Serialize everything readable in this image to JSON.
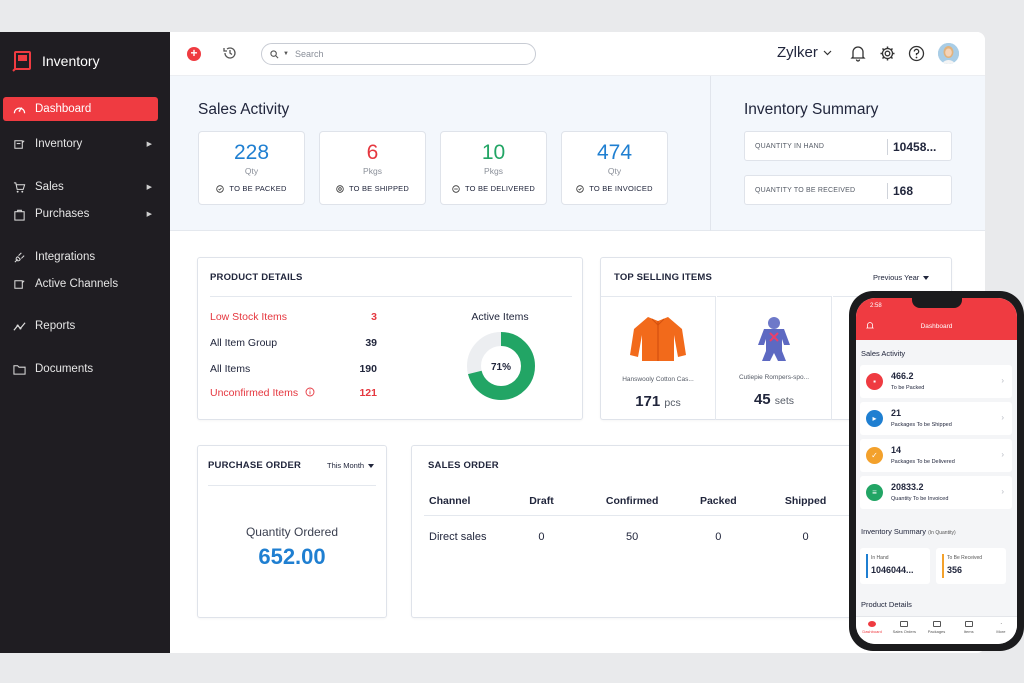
{
  "app": {
    "name": "Inventory"
  },
  "sidebar": {
    "items": [
      {
        "label": "Dashboard",
        "icon": "dashboard-icon",
        "active": true
      },
      {
        "label": "Inventory",
        "icon": "inventory-icon",
        "has_caret": true
      },
      {
        "label": "Sales",
        "icon": "cart-icon",
        "has_caret": true
      },
      {
        "label": "Purchases",
        "icon": "bag-icon",
        "has_caret": true
      },
      {
        "label": "Integrations",
        "icon": "plug-icon"
      },
      {
        "label": "Active Channels",
        "icon": "channels-icon"
      },
      {
        "label": "Reports",
        "icon": "reports-icon"
      },
      {
        "label": "Documents",
        "icon": "folder-icon"
      }
    ]
  },
  "topbar": {
    "search_placeholder": "Search",
    "org_name": "Zylker"
  },
  "sales_activity": {
    "title": "Sales Activity",
    "cards": [
      {
        "value": "228",
        "unit": "Qty",
        "label": "TO BE PACKED",
        "color": "#1f7fd1"
      },
      {
        "value": "6",
        "unit": "Pkgs",
        "label": "TO BE SHIPPED",
        "color": "#e5373f"
      },
      {
        "value": "10",
        "unit": "Pkgs",
        "label": "TO BE DELIVERED",
        "color": "#22a565"
      },
      {
        "value": "474",
        "unit": "Qty",
        "label": "TO BE INVOICED",
        "color": "#1f7fd1"
      }
    ]
  },
  "inventory_summary": {
    "title": "Inventory Summary",
    "rows": [
      {
        "label": "QUANTITY IN HAND",
        "value": "10458..."
      },
      {
        "label": "QUANTITY TO BE RECEIVED",
        "value": "168"
      }
    ]
  },
  "product_details": {
    "title": "PRODUCT DETAILS",
    "rows": [
      {
        "label": "Low Stock Items",
        "value": "3",
        "highlight": true
      },
      {
        "label": "All Item Group",
        "value": "39"
      },
      {
        "label": "All Items",
        "value": "190"
      },
      {
        "label": "Unconfirmed Items",
        "value": "121",
        "highlight": true,
        "info": true
      }
    ],
    "active_items": {
      "label": "Active Items",
      "percent_label": "71%",
      "fraction": 0.71,
      "color": "#22a565"
    }
  },
  "top_selling": {
    "title": "TOP SELLING ITEMS",
    "period": "Previous Year",
    "items": [
      {
        "name": "Hanswooly Cotton Cas...",
        "qty": "171",
        "unit": "pcs"
      },
      {
        "name": "Cutiepie Rompers-spo...",
        "qty": "45",
        "unit": "sets"
      }
    ]
  },
  "purchase_order": {
    "title": "PURCHASE ORDER",
    "period": "This Month",
    "label": "Quantity Ordered",
    "value": "652.00"
  },
  "sales_order": {
    "title": "SALES ORDER",
    "columns": [
      "Channel",
      "Draft",
      "Confirmed",
      "Packed",
      "Shipped"
    ],
    "rows": [
      [
        "Direct sales",
        "0",
        "50",
        "0",
        "0"
      ]
    ]
  },
  "mobile": {
    "time": "2:58",
    "title": "Dashboard",
    "sales_activity_title": "Sales Activity",
    "cards": [
      {
        "value": "466.2",
        "label": "To be Packed",
        "color": "#ef3b41"
      },
      {
        "value": "21",
        "label": "Packages To be Shipped",
        "color": "#1f7fd1"
      },
      {
        "value": "14",
        "label": "Packages To be Delivered",
        "color": "#f3a12c"
      },
      {
        "value": "20833.2",
        "label": "Quantity To be Invoiced",
        "color": "#22a565"
      }
    ],
    "inventory_title": "Inventory Summary",
    "inventory_subtitle": "(In Quantity)",
    "inventory": [
      {
        "label": "In Hand",
        "value": "1046044...",
        "color": "#1f7fd1"
      },
      {
        "label": "To Be Received",
        "value": "356",
        "color": "#f3a12c"
      }
    ],
    "product_details_title": "Product Details",
    "tabs": [
      "Dashboard",
      "Sales Orders",
      "Packages",
      "Items",
      "More"
    ]
  }
}
